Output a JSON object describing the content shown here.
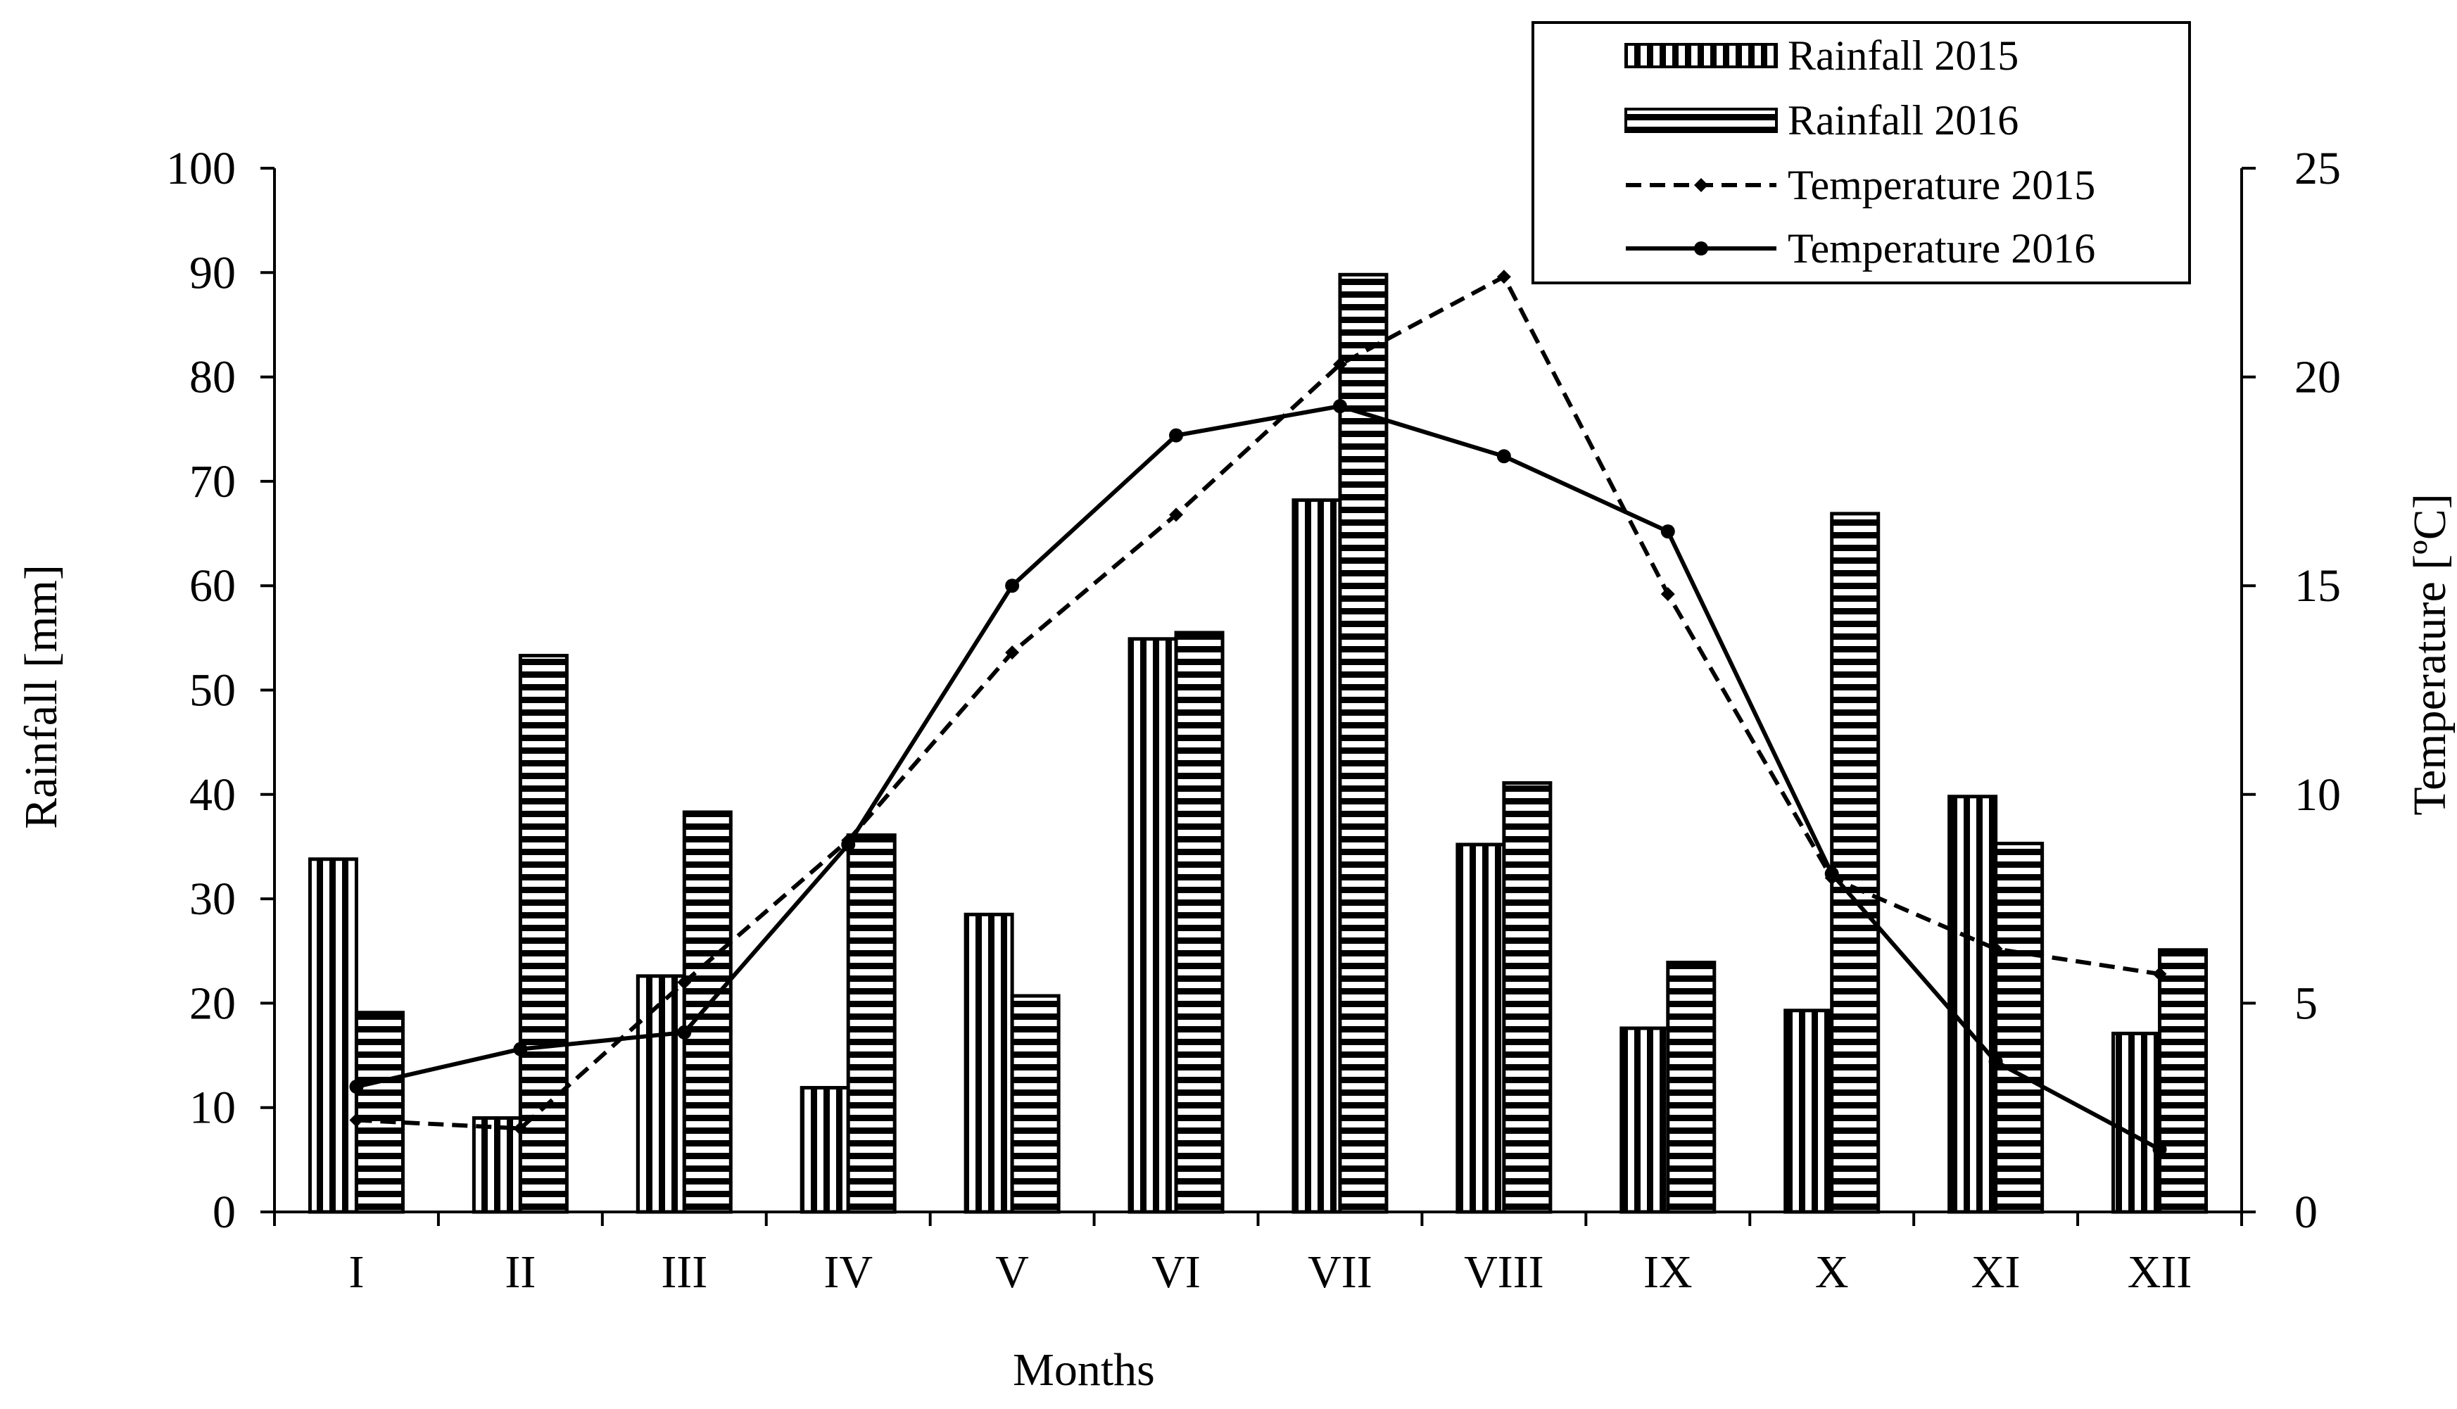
{
  "chart_data": {
    "type": "bar",
    "title": "",
    "xlabel": "Months",
    "ylabel": "Rainfall [mm]",
    "y2label": "Temperature [ºC]",
    "ylim": [
      0,
      100
    ],
    "y2lim": [
      0,
      25
    ],
    "yticks": [
      "0",
      "10",
      "20",
      "30",
      "40",
      "50",
      "60",
      "70",
      "80",
      "90",
      "100"
    ],
    "y2ticks": [
      "0",
      "5",
      "10",
      "15",
      "20",
      "25"
    ],
    "categories": [
      "I",
      "II",
      "III",
      "IV",
      "V",
      "VI",
      "VII",
      "VIII",
      "IX",
      "X",
      "XI",
      "XII"
    ],
    "grid": false,
    "legend_position": "top-right",
    "series": [
      {
        "name": "Rainfall 2015",
        "kind": "bar",
        "axis": "left",
        "pattern": "vertical-stripes",
        "values": [
          33.8,
          9.0,
          22.6,
          11.9,
          28.5,
          54.9,
          68.2,
          35.2,
          17.6,
          19.3,
          39.8,
          17.1
        ]
      },
      {
        "name": "Rainfall 2016",
        "kind": "bar",
        "axis": "left",
        "pattern": "horizontal-stripes",
        "values": [
          19.1,
          53.3,
          38.3,
          36.1,
          20.7,
          55.5,
          89.8,
          41.1,
          23.9,
          66.9,
          35.3,
          25.1
        ]
      },
      {
        "name": "Temperature 2015",
        "kind": "line",
        "axis": "right",
        "style": "dashed",
        "marker": "diamond",
        "values": [
          2.2,
          2.0,
          5.5,
          8.9,
          13.4,
          16.7,
          20.3,
          22.4,
          14.8,
          8.0,
          6.3,
          5.7
        ]
      },
      {
        "name": "Temperature 2016",
        "kind": "line",
        "axis": "right",
        "style": "solid",
        "marker": "circle",
        "values": [
          3.0,
          3.9,
          4.3,
          8.8,
          15.0,
          18.6,
          19.3,
          18.1,
          16.3,
          8.1,
          3.6,
          1.5
        ]
      }
    ]
  }
}
